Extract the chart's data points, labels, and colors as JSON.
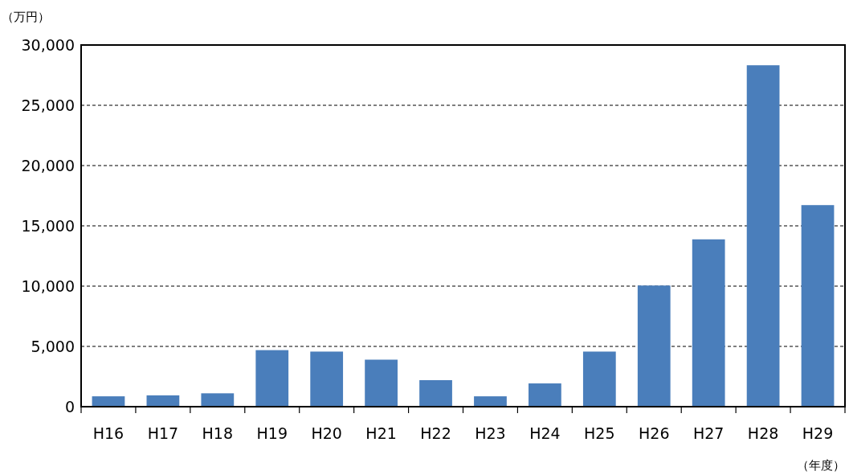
{
  "chart_data": {
    "type": "bar",
    "ylabel": "（万円）",
    "xlabel": "（年度）",
    "categories": [
      "H16",
      "H17",
      "H18",
      "H19",
      "H20",
      "H21",
      "H22",
      "H23",
      "H24",
      "H25",
      "H26",
      "H27",
      "H28",
      "H29"
    ],
    "values": [
      860,
      940,
      1110,
      4690,
      4570,
      3900,
      2200,
      860,
      1930,
      4570,
      10050,
      13880,
      28320,
      16720
    ],
    "color": "#4a7ebb",
    "ylim": [
      0,
      30000
    ],
    "yticks": [
      {
        "value": 0,
        "label": "0"
      },
      {
        "value": 5000,
        "label": "5,000"
      },
      {
        "value": 10000,
        "label": "10,000"
      },
      {
        "value": 15000,
        "label": "15,000"
      },
      {
        "value": 20000,
        "label": "20,000"
      },
      {
        "value": 25000,
        "label": "25,000"
      },
      {
        "value": 30000,
        "label": "30,000"
      }
    ],
    "grid": "y"
  }
}
